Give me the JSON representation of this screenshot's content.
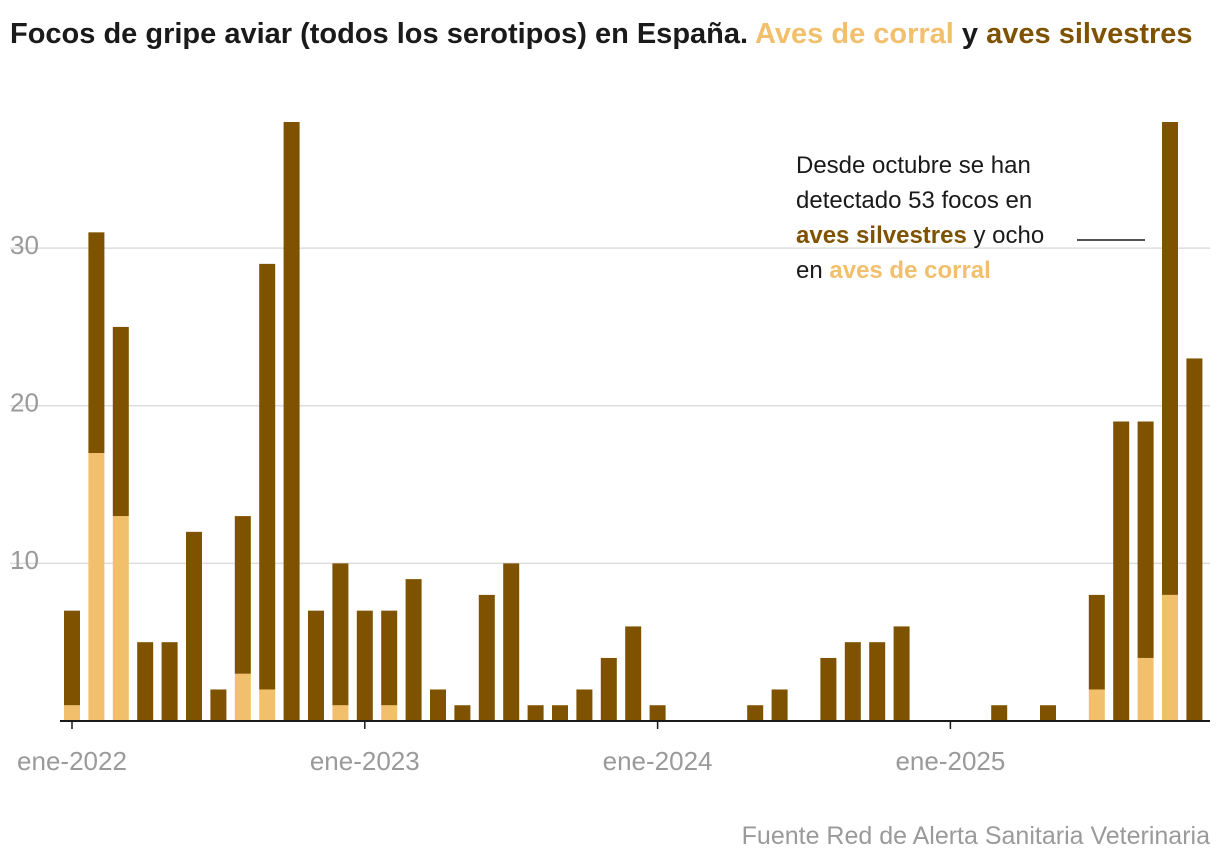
{
  "chart_data": {
    "type": "bar",
    "stacked": true,
    "title": "Focos de gripe aviar (todos los serotipos) en España.",
    "title_connector": "y",
    "categories": [
      "ene-2022",
      null,
      null,
      null,
      null,
      null,
      null,
      null,
      null,
      null,
      null,
      null,
      "ene-2023",
      null,
      null,
      null,
      null,
      null,
      null,
      null,
      null,
      null,
      null,
      null,
      "ene-2024",
      null,
      null,
      null,
      null,
      null,
      null,
      null,
      null,
      null,
      null,
      null,
      "ene-2025",
      null,
      null,
      null,
      null,
      null,
      null,
      null,
      null,
      null,
      null
    ],
    "series": [
      {
        "name": "Aves de corral",
        "color": "#f2bf6c",
        "values": [
          1,
          17,
          13,
          0,
          0,
          0,
          0,
          3,
          2,
          0,
          0,
          1,
          0,
          1,
          0,
          0,
          0,
          0,
          0,
          0,
          0,
          0,
          0,
          0,
          0,
          0,
          0,
          0,
          0,
          0,
          0,
          0,
          0,
          0,
          0,
          0,
          0,
          0,
          0,
          0,
          0,
          0,
          2,
          0,
          4,
          8,
          0
        ]
      },
      {
        "name": "aves silvestres",
        "color": "#7f5200",
        "values": [
          6,
          14,
          12,
          5,
          5,
          12,
          2,
          10,
          27,
          38,
          7,
          9,
          7,
          6,
          9,
          2,
          1,
          8,
          10,
          1,
          1,
          2,
          4,
          6,
          1,
          0,
          0,
          0,
          1,
          2,
          0,
          4,
          5,
          5,
          6,
          0,
          0,
          0,
          1,
          0,
          1,
          0,
          6,
          19,
          15,
          30,
          23
        ]
      }
    ],
    "ylim": [
      0,
      38
    ],
    "yticks": [
      10,
      20,
      30
    ],
    "grid": true,
    "annotation": [
      {
        "text": "Desde octubre se han detectado 53 focos en "
      },
      {
        "text": "aves silvestres",
        "color": "#7f5200"
      },
      {
        "text": " y ocho en "
      },
      {
        "text": "aves de corral",
        "color": "#f2bf6c"
      }
    ],
    "source": "Fuente Red de Alerta Sanitaria Veterinaria"
  }
}
